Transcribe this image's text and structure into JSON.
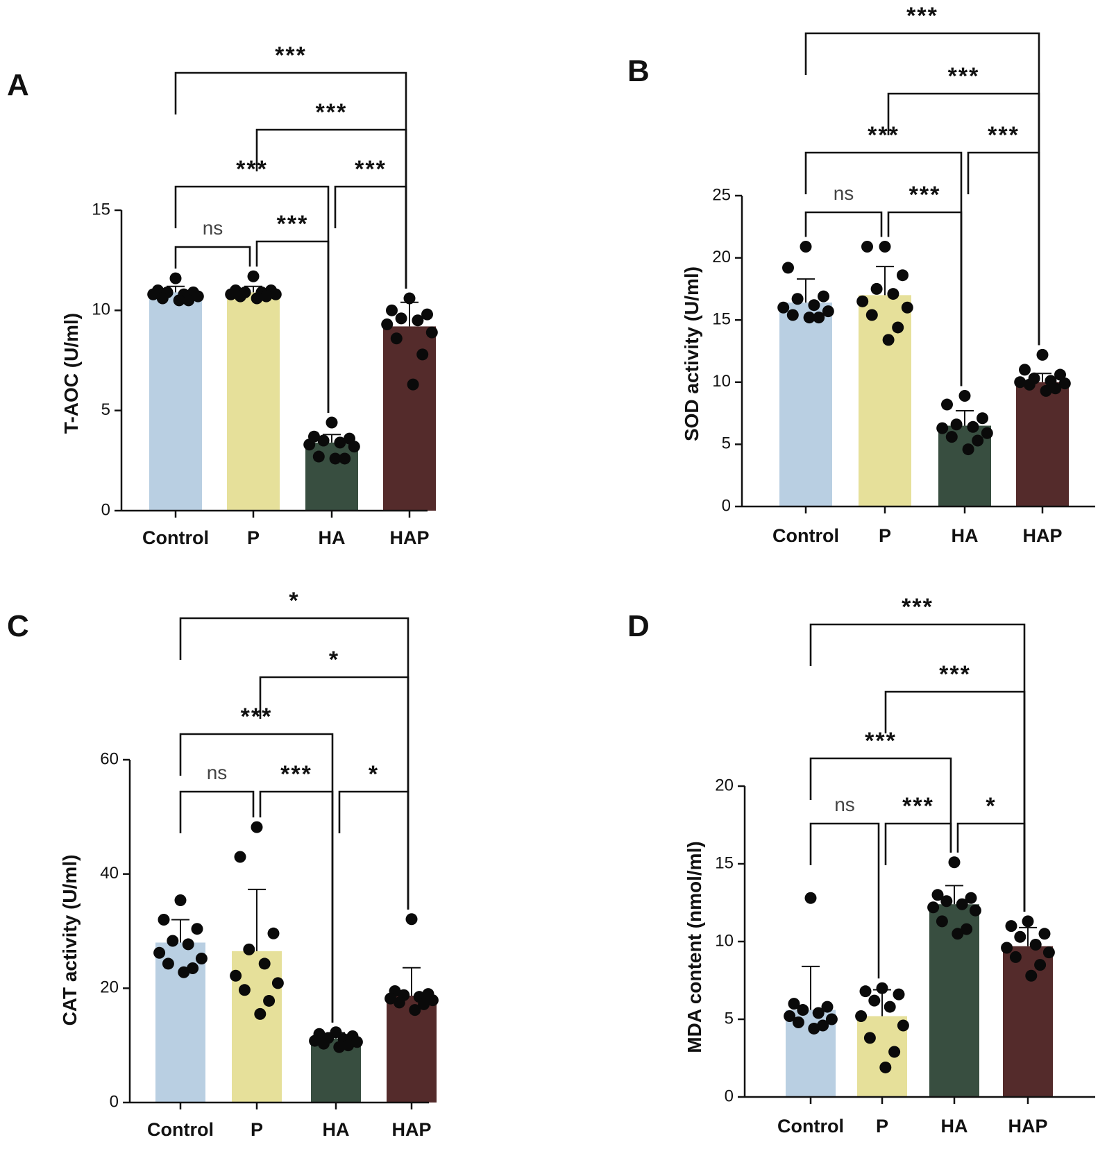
{
  "palette": {
    "Control": "#b9cfe2",
    "P": "#e6e09a",
    "HA": "#384e40",
    "HAP": "#542b2b"
  },
  "chart_data": [
    {
      "panel": "A",
      "type": "bar",
      "categories": [
        "Control",
        "P",
        "HA",
        "HAP"
      ],
      "values": [
        10.9,
        10.9,
        3.4,
        9.2
      ],
      "error": [
        0.3,
        0.3,
        0.4,
        1.2
      ],
      "points": [
        [
          11.6,
          11.0,
          10.9,
          10.9,
          10.8,
          10.8,
          10.7,
          10.6,
          10.5,
          10.5
        ],
        [
          11.7,
          11.0,
          11.0,
          10.9,
          10.9,
          10.8,
          10.8,
          10.7,
          10.7,
          10.6
        ],
        [
          4.4,
          3.7,
          3.6,
          3.5,
          3.4,
          3.3,
          3.2,
          2.7,
          2.6,
          2.6
        ],
        [
          10.6,
          10.0,
          9.8,
          9.6,
          9.5,
          9.3,
          8.9,
          8.6,
          7.8,
          6.3
        ]
      ],
      "title": "",
      "xlabel": "",
      "ylabel": "T-AOC (U/ml)",
      "ylim": [
        0,
        15
      ],
      "yticks": [
        0,
        5,
        10,
        15
      ],
      "comparisons": [
        {
          "from": 0,
          "to": 1,
          "label": "ns"
        },
        {
          "from": 1,
          "to": 2,
          "label": "***"
        },
        {
          "from": 0,
          "to": 2,
          "label": "***"
        },
        {
          "from": 2,
          "to": 3,
          "label": "***"
        },
        {
          "from": 1,
          "to": 3,
          "label": "***"
        },
        {
          "from": 0,
          "to": 3,
          "label": "***"
        }
      ]
    },
    {
      "panel": "B",
      "type": "bar",
      "categories": [
        "Control",
        "P",
        "HA",
        "HAP"
      ],
      "values": [
        16.4,
        17.0,
        6.5,
        10.0
      ],
      "error": [
        1.9,
        2.3,
        1.2,
        0.7
      ],
      "points": [
        [
          20.9,
          19.2,
          16.9,
          16.7,
          16.2,
          16.0,
          15.7,
          15.4,
          15.2,
          15.2
        ],
        [
          20.9,
          20.9,
          18.6,
          17.5,
          17.1,
          16.5,
          16.0,
          15.4,
          14.4,
          13.4
        ],
        [
          8.9,
          8.2,
          7.1,
          6.6,
          6.4,
          6.3,
          5.9,
          5.6,
          5.3,
          4.6
        ],
        [
          12.2,
          11.0,
          10.6,
          10.3,
          10.1,
          10.0,
          9.9,
          9.8,
          9.5,
          9.3
        ]
      ],
      "title": "",
      "xlabel": "",
      "ylabel": "SOD activity (U/ml)",
      "ylim": [
        0,
        25
      ],
      "yticks": [
        0,
        5,
        10,
        15,
        20,
        25
      ],
      "comparisons": [
        {
          "from": 0,
          "to": 1,
          "label": "ns"
        },
        {
          "from": 1,
          "to": 2,
          "label": "***"
        },
        {
          "from": 0,
          "to": 2,
          "label": "***"
        },
        {
          "from": 2,
          "to": 3,
          "label": "***"
        },
        {
          "from": 1,
          "to": 3,
          "label": "***"
        },
        {
          "from": 0,
          "to": 3,
          "label": "***"
        }
      ]
    },
    {
      "panel": "C",
      "type": "bar",
      "categories": [
        "Control",
        "P",
        "HA",
        "HAP"
      ],
      "values": [
        28.0,
        26.5,
        11.2,
        18.7
      ],
      "error": [
        4.0,
        10.8,
        1.0,
        4.9
      ],
      "points": [
        [
          35.4,
          32.0,
          30.4,
          28.3,
          27.7,
          26.2,
          25.2,
          24.3,
          23.5,
          22.8
        ],
        [
          48.2,
          43.0,
          29.6,
          26.8,
          24.3,
          22.2,
          20.9,
          19.7,
          17.8,
          15.5
        ],
        [
          12.3,
          12.0,
          11.6,
          11.3,
          11.1,
          10.8,
          10.6,
          10.3,
          10.0,
          9.7
        ],
        [
          32.1,
          19.5,
          19.0,
          18.8,
          18.5,
          18.2,
          17.9,
          17.5,
          17.2,
          16.2
        ]
      ],
      "title": "",
      "xlabel": "",
      "ylabel": "CAT activity (U/ml)",
      "ylim": [
        0,
        60
      ],
      "yticks": [
        0,
        20,
        40,
        60
      ],
      "comparisons": [
        {
          "from": 0,
          "to": 1,
          "label": "ns"
        },
        {
          "from": 1,
          "to": 2,
          "label": "***"
        },
        {
          "from": 2,
          "to": 3,
          "label": "*"
        },
        {
          "from": 0,
          "to": 2,
          "label": "***"
        },
        {
          "from": 1,
          "to": 3,
          "label": "*"
        },
        {
          "from": 0,
          "to": 3,
          "label": "*"
        }
      ]
    },
    {
      "panel": "D",
      "type": "bar",
      "categories": [
        "Control",
        "P",
        "HA",
        "HAP"
      ],
      "values": [
        5.6,
        5.2,
        12.4,
        9.7
      ],
      "error": [
        2.8,
        1.7,
        1.2,
        1.2
      ],
      "points": [
        [
          12.8,
          6.0,
          5.8,
          5.6,
          5.4,
          5.2,
          5.0,
          4.8,
          4.6,
          4.4
        ],
        [
          7.0,
          6.8,
          6.6,
          6.2,
          5.8,
          5.2,
          4.6,
          3.8,
          2.9,
          1.9
        ],
        [
          15.1,
          13.0,
          12.8,
          12.6,
          12.4,
          12.2,
          12.0,
          11.3,
          10.8,
          10.5
        ],
        [
          11.3,
          11.0,
          10.5,
          10.3,
          9.8,
          9.6,
          9.3,
          9.0,
          8.5,
          7.8
        ]
      ],
      "title": "",
      "xlabel": "",
      "ylabel": "MDA content (nmol/ml)",
      "ylim": [
        0,
        20
      ],
      "yticks": [
        0,
        5,
        10,
        15,
        20
      ],
      "comparisons": [
        {
          "from": 0,
          "to": 1,
          "label": "ns"
        },
        {
          "from": 1,
          "to": 2,
          "label": "***"
        },
        {
          "from": 2,
          "to": 3,
          "label": "*"
        },
        {
          "from": 0,
          "to": 2,
          "label": "***"
        },
        {
          "from": 1,
          "to": 3,
          "label": "***"
        },
        {
          "from": 0,
          "to": 3,
          "label": "***"
        }
      ]
    }
  ]
}
